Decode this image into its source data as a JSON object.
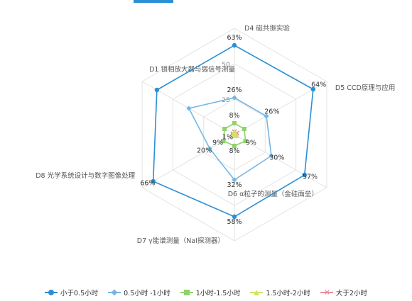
{
  "chart_data": {
    "type": "radar",
    "axes": [
      "D1 锁相放大器与弱信号测量",
      "D4 磁共振实验",
      "D5 CCD原理与应用",
      "D6 α粒子的测量（金硅面垒）",
      "D7 γ能谱测量（NaI探测器）",
      "D8 光学系统设计与数字图像处理"
    ],
    "radial_ticks": [
      25,
      50
    ],
    "radial_max": 75,
    "series": [
      {
        "name": "小于0.5小时",
        "color": "#2a8fd4",
        "marker": "circle",
        "values": [
          63,
          63,
          64,
          57,
          58,
          66
        ],
        "labels": [
          "",
          "63%",
          "64%",
          "57%",
          "58%",
          "66%"
        ]
      },
      {
        "name": "0.5小时 -1小时",
        "color": "#74b6e6",
        "marker": "diamond",
        "values": [
          37,
          26,
          26,
          30,
          32,
          20
        ],
        "labels": [
          "",
          "26%",
          "26%",
          "30%",
          "32%",
          "20%"
        ]
      },
      {
        "name": "1小时-1.5小时",
        "color": "#8fd36b",
        "marker": "square",
        "values": [
          8,
          8,
          8,
          9,
          8,
          9
        ],
        "labels": [
          "",
          "8%",
          "",
          "9%",
          "8%",
          "9%"
        ]
      },
      {
        "name": "1.5小时-2小时",
        "color": "#cfe36a",
        "marker": "triangle",
        "values": [
          1,
          2,
          1,
          2,
          1,
          1
        ],
        "labels": [
          "",
          "",
          "",
          "",
          "",
          "1%"
        ]
      },
      {
        "name": "大于2小时",
        "color": "#f08a9a",
        "marker": "cross",
        "values": [
          1,
          2,
          2,
          1,
          1,
          1
        ],
        "labels": [
          "",
          "",
          "",
          "",
          "",
          ""
        ]
      }
    ],
    "legend_position": "bottom",
    "grid": true
  }
}
